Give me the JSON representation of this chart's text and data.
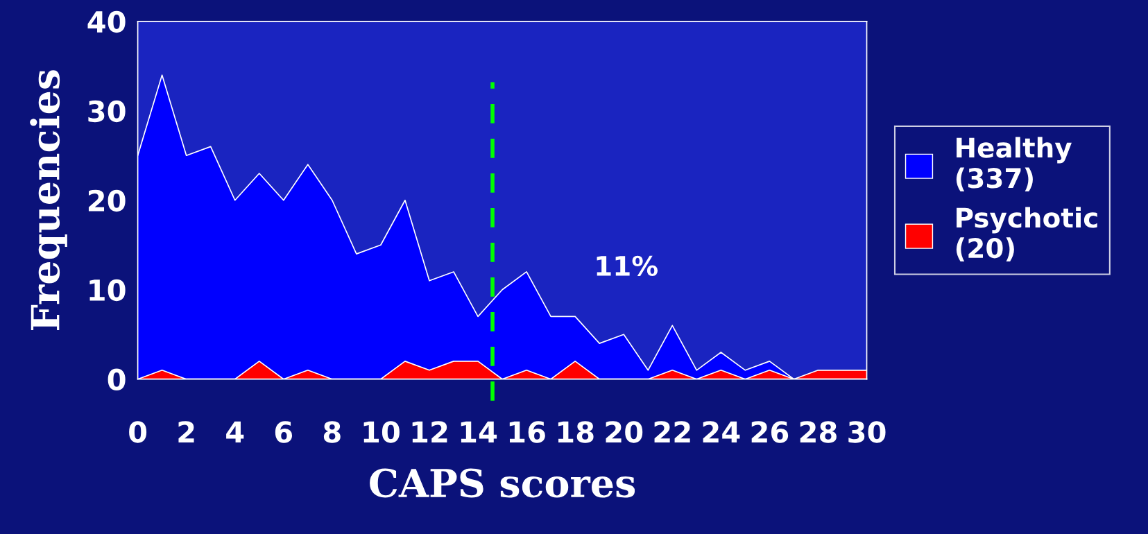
{
  "chart_data": {
    "type": "area",
    "xlabel": "CAPS scores",
    "ylabel": "Frequencies",
    "x": [
      0,
      1,
      2,
      3,
      4,
      5,
      6,
      7,
      8,
      9,
      10,
      11,
      12,
      13,
      14,
      15,
      16,
      17,
      18,
      19,
      20,
      21,
      22,
      23,
      24,
      25,
      26,
      27,
      28,
      29,
      30
    ],
    "series": [
      {
        "name": "Healthy\n(337)",
        "color": "#0000ff",
        "values": [
          25,
          34,
          25,
          26,
          20,
          23,
          20,
          24,
          20,
          14,
          15,
          20,
          11,
          12,
          7,
          10,
          12,
          7,
          7,
          4,
          5,
          1,
          6,
          1,
          3,
          1,
          2,
          0,
          0,
          0,
          0
        ]
      },
      {
        "name": "Psychotic\n(20)",
        "color": "#ff0000",
        "values": [
          0,
          1,
          0,
          0,
          0,
          2,
          0,
          1,
          0,
          0,
          0,
          2,
          1,
          2,
          2,
          0,
          1,
          0,
          2,
          0,
          0,
          0,
          1,
          0,
          1,
          0,
          1,
          0,
          1,
          1,
          1
        ]
      }
    ],
    "xlim": [
      0,
      30
    ],
    "xticks": [
      0,
      2,
      4,
      6,
      8,
      10,
      12,
      14,
      16,
      18,
      20,
      22,
      24,
      26,
      28,
      30
    ],
    "ylim": [
      0,
      40
    ],
    "yticks": [
      0,
      10,
      20,
      30,
      40
    ],
    "ref_lines": [
      {
        "axis": "x",
        "value": 14.6,
        "color": "#00ff00",
        "line_style": "dashed"
      }
    ],
    "annotations": [
      "11%"
    ],
    "legend": "right",
    "grid": false
  }
}
